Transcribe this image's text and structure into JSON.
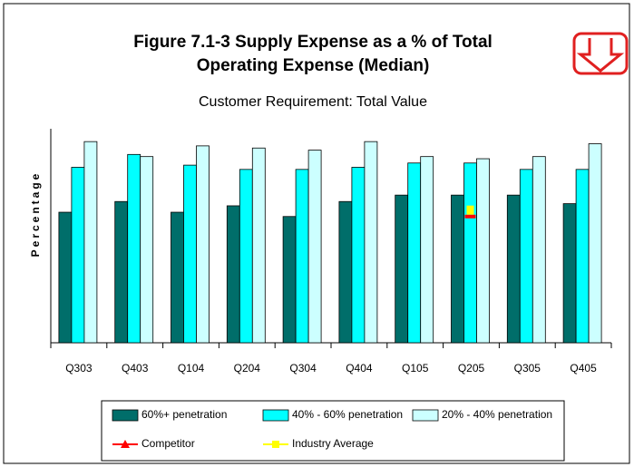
{
  "chart_data": {
    "type": "bar",
    "title": "Figure 7.1-3 Supply Expense as a % of Total",
    "title_line2": "Operating Expense (Median)",
    "subtitle": "Customer Requirement:  Total Value",
    "y_label": "Percentage",
    "categories": [
      "Q303",
      "Q403",
      "Q104",
      "Q204",
      "Q304",
      "Q404",
      "Q105",
      "Q205",
      "Q305",
      "Q405"
    ],
    "ylim": [
      0,
      100
    ],
    "series": [
      {
        "name": "60%+ penetration",
        "color": "#006e6a",
        "values": [
          61,
          66,
          61,
          64,
          59,
          66,
          69,
          69,
          69,
          65
        ]
      },
      {
        "name": "40% - 60% penetration",
        "color": "#00ffff",
        "values": [
          82,
          88,
          83,
          81,
          81,
          82,
          84,
          84,
          81,
          81
        ]
      },
      {
        "name": "20% - 40% penetration",
        "color": "#ccffff",
        "values": [
          94,
          87,
          92,
          91,
          90,
          94,
          87,
          86,
          87,
          93
        ]
      },
      {
        "name": "Competitor",
        "type": "line",
        "color": "#ff0000",
        "values": [
          null,
          null,
          null,
          null,
          null,
          null,
          null,
          59,
          null,
          null
        ]
      },
      {
        "name": "Industry Average",
        "type": "line",
        "color": "#ffff00",
        "values": [
          null,
          null,
          null,
          null,
          null,
          null,
          null,
          62,
          null,
          null
        ]
      }
    ]
  }
}
